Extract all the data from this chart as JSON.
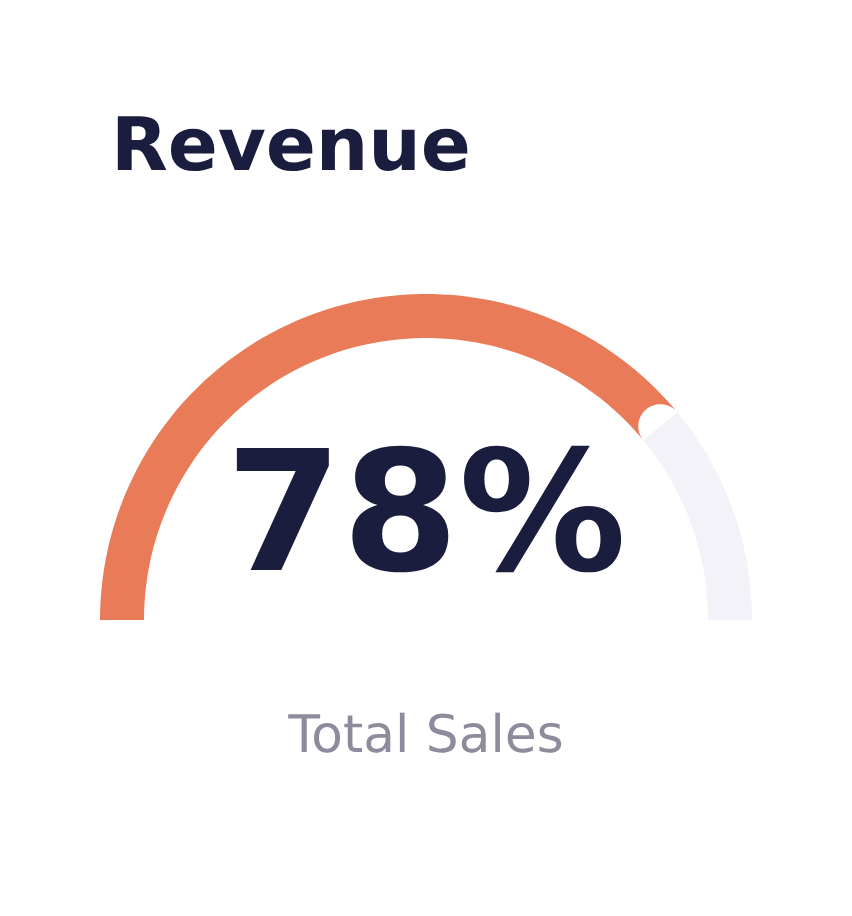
{
  "chart_data": {
    "type": "donut",
    "title": "Revenue",
    "categories": [
      null,
      null
    ],
    "values": [
      78,
      22
    ],
    "colors": [
      "#e97b58",
      "#f2f2f8"
    ],
    "value_labels": [
      "78%",
      null
    ],
    "annotations": [
      "Total Sales"
    ]
  }
}
